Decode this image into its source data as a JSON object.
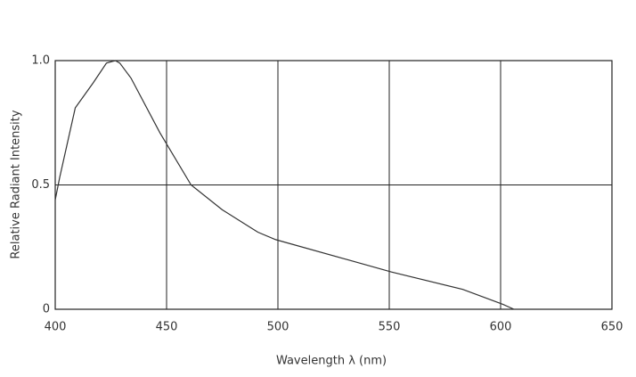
{
  "chart_data": {
    "type": "line",
    "x_label": "Wavelength λ (nm)",
    "y_label": "Relative Radiant Intensity",
    "x": [
      400,
      402,
      409,
      417,
      423,
      427,
      429,
      434,
      447,
      461,
      475,
      491,
      499,
      531,
      551,
      583,
      601,
      606
    ],
    "values": [
      0.44,
      0.53,
      0.81,
      0.91,
      0.99,
      1.0,
      0.99,
      0.93,
      0.71,
      0.5,
      0.4,
      0.31,
      0.28,
      0.2,
      0.15,
      0.08,
      0.02,
      0
    ],
    "color": "#333333",
    "xlim": [
      400,
      650
    ],
    "xticks": [
      400,
      450,
      500,
      550,
      600,
      650
    ],
    "ylim": [
      0,
      1
    ],
    "yticks": [
      0,
      0.5,
      {
        "value": 1,
        "label": "1.0"
      }
    ],
    "grid": true
  }
}
